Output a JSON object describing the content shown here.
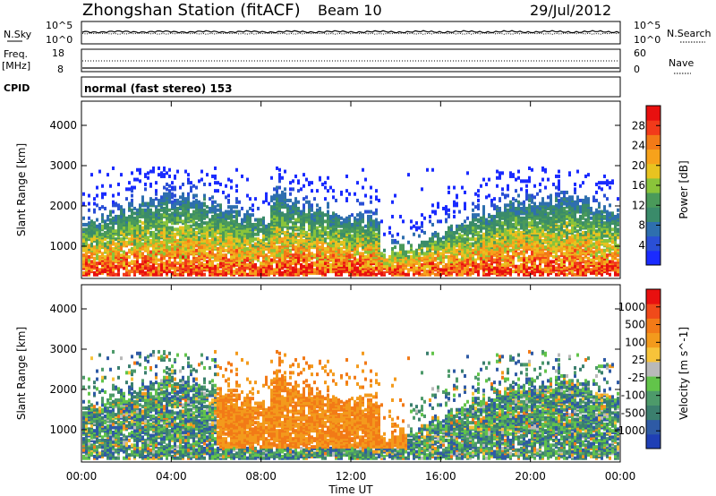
{
  "header": {
    "station": "Zhongshan Station (fitACF)",
    "beam": "Beam 10",
    "date": "29/Jul/2012"
  },
  "panels": {
    "nsky": {
      "label": "N.Sky",
      "left_ticks": [
        "10^5",
        "10^0"
      ],
      "right_ticks": [
        "10^5",
        "10^0"
      ],
      "right_label": "N.Search"
    },
    "freq": {
      "label1": "Freq.",
      "label2": "[MHz]",
      "left_ticks": [
        "18",
        "8"
      ],
      "right_ticks": [
        "60",
        "0"
      ],
      "right_label": "Nave"
    },
    "cpid": {
      "label": "CPID",
      "text": "normal (fast stereo) 153"
    }
  },
  "colors": {
    "power": [
      "#1a2bff",
      "#2a4fd6",
      "#2e6fae",
      "#3a8b6a",
      "#4a9a5a",
      "#8ac43a",
      "#e8c320",
      "#f7a21b",
      "#f27a17",
      "#f23a1a",
      "#e8100f"
    ],
    "velocity": [
      "#1f3fb5",
      "#2e5aa5",
      "#3b7f6e",
      "#4d9a6a",
      "#62c44a",
      "#b9b9b9",
      "#f7c33a",
      "#f39a1c",
      "#f27a17",
      "#f04a1a",
      "#e8100f"
    ]
  },
  "chart_data": [
    {
      "type": "heatmap",
      "ylabel": "Slant Range [km]",
      "xlabel": "Time UT",
      "x_ticks": [
        "00:00",
        "04:00",
        "08:00",
        "12:00",
        "16:00",
        "20:00",
        "00:00"
      ],
      "y_ticks": [
        1000,
        2000,
        3000,
        4000
      ],
      "ylim": [
        200,
        4600
      ],
      "colorbar": {
        "label": "Power [dB]",
        "ticks": [
          4,
          8,
          12,
          16,
          20,
          24,
          28
        ]
      }
    },
    {
      "type": "heatmap",
      "ylabel": "Slant Range [km]",
      "xlabel": "Time UT",
      "x_ticks": [
        "00:00",
        "04:00",
        "08:00",
        "12:00",
        "16:00",
        "20:00",
        "00:00"
      ],
      "y_ticks": [
        1000,
        2000,
        3000,
        4000
      ],
      "ylim": [
        200,
        4600
      ],
      "colorbar": {
        "label": "Velocity [m s^-1]",
        "ticks": [
          1000,
          500,
          100,
          25,
          -25,
          -100,
          -500,
          -1000
        ]
      }
    }
  ]
}
